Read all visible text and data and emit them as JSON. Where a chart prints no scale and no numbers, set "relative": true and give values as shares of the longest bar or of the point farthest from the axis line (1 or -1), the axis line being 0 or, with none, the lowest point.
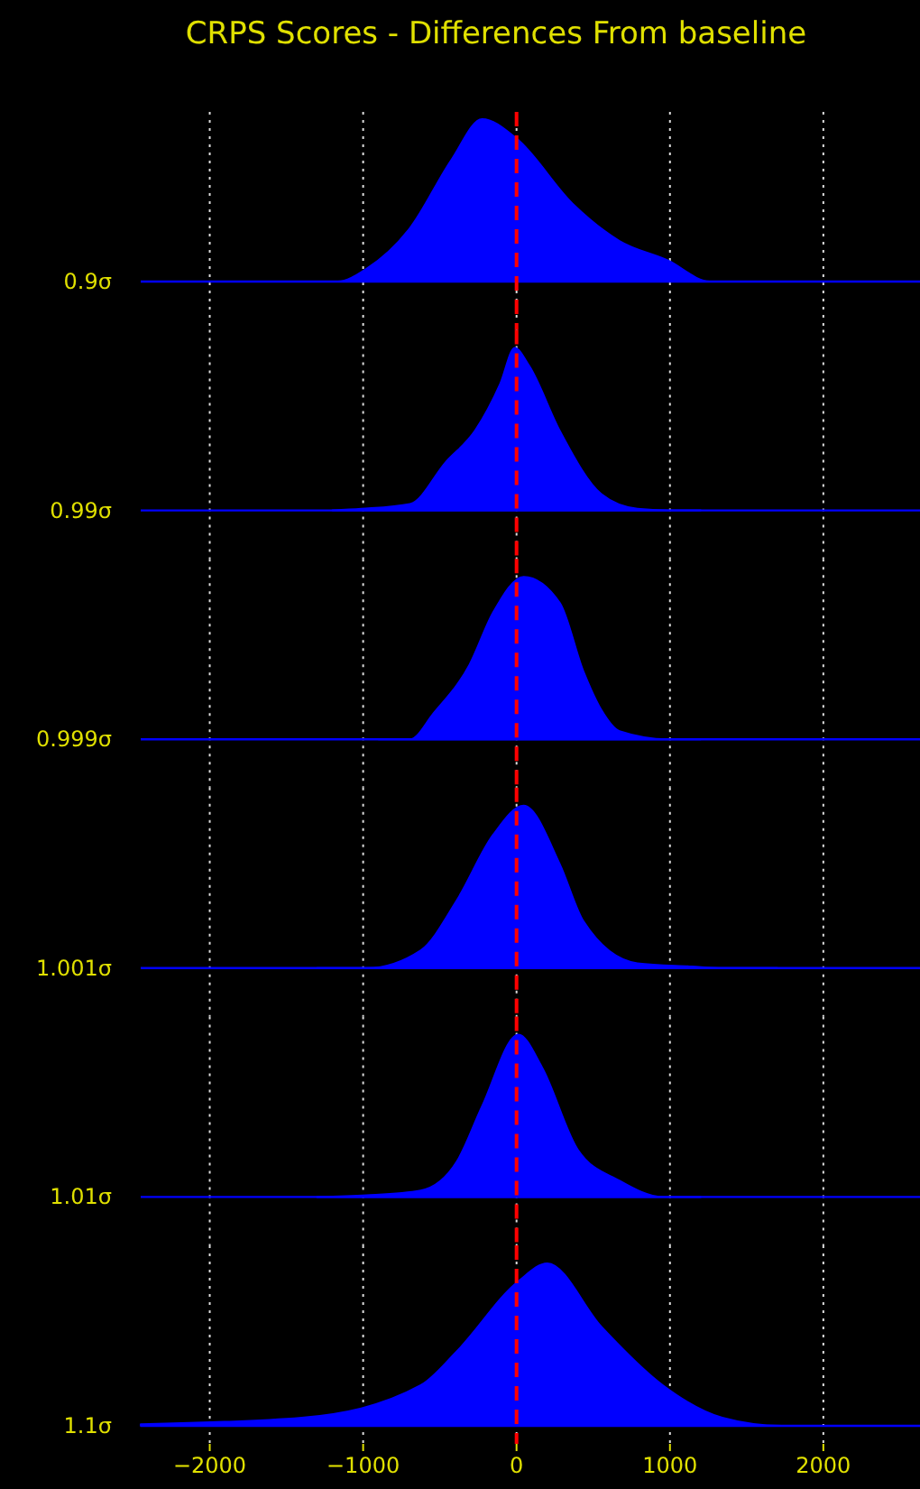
{
  "chart_data": [
    {
      "type": "area",
      "title": "CRPS Scores - Differences From baseline",
      "relative": true,
      "ylabel": "0.9σ",
      "series": [
        {
          "color": "#0000ff",
          "x": [
            -1400,
            -1165,
            -976,
            -694,
            -424,
            -224,
            0,
            365,
            671,
            988,
            1259,
            1600
          ],
          "values": [
            0,
            0,
            0.08,
            0.33,
            0.75,
            1,
            0.88,
            0.48,
            0.25,
            0.13,
            0,
            0
          ]
        }
      ],
      "xlim": [
        -2450,
        2630
      ],
      "xticks": [
        -2000,
        -1000,
        0,
        1000,
        2000
      ],
      "grid": "x",
      "ref_lines": [
        {
          "axis": "x",
          "value": 0,
          "color": "#ff0000",
          "line_style": "dashed"
        }
      ],
      "tick_labels": false
    },
    {
      "type": "area",
      "relative": true,
      "ylabel": "0.99σ",
      "series": [
        {
          "color": "#0000ff",
          "x": [
            -1200,
            -1012,
            -694,
            -459,
            -271,
            -106,
            -12,
            82,
            282,
            553,
            788,
            988,
            1200
          ],
          "values": [
            0,
            0.01,
            0.04,
            0.3,
            0.49,
            0.78,
            1,
            0.89,
            0.49,
            0.1,
            0.01,
            0,
            0
          ]
        }
      ],
      "xlim": [
        -2450,
        2630
      ],
      "xticks": [
        -2000,
        -1000,
        0,
        1000,
        2000
      ],
      "grid": "x",
      "ref_lines": [
        {
          "axis": "x",
          "value": 0,
          "color": "#ff0000",
          "line_style": "dashed"
        }
      ],
      "tick_labels": false
    },
    {
      "type": "area",
      "relative": true,
      "ylabel": "0.999σ",
      "series": [
        {
          "color": "#0000ff",
          "x": [
            -900,
            -694,
            -541,
            -306,
            -153,
            47,
            282,
            435,
            553,
            671,
            988,
            1200
          ],
          "values": [
            0,
            0,
            0.16,
            0.46,
            0.78,
            1,
            0.84,
            0.42,
            0.18,
            0.05,
            0,
            0
          ]
        }
      ],
      "xlim": [
        -2450,
        2630
      ],
      "xticks": [
        -2000,
        -1000,
        0,
        1000,
        2000
      ],
      "grid": "x",
      "ref_lines": [
        {
          "axis": "x",
          "value": 0,
          "color": "#ff0000",
          "line_style": "dashed"
        }
      ],
      "tick_labels": false
    },
    {
      "type": "area",
      "relative": true,
      "ylabel": "1.001σ",
      "series": [
        {
          "color": "#0000ff",
          "x": [
            -1300,
            -976,
            -624,
            -388,
            -153,
            47,
            282,
            435,
            788,
            1141,
            1341,
            1700
          ],
          "values": [
            0,
            0,
            0.11,
            0.42,
            0.82,
            1,
            0.64,
            0.29,
            0.03,
            0.01,
            0,
            0
          ]
        }
      ],
      "xlim": [
        -2450,
        2630
      ],
      "xticks": [
        -2000,
        -1000,
        0,
        1000,
        2000
      ],
      "grid": "x",
      "ref_lines": [
        {
          "axis": "x",
          "value": 0,
          "color": "#ff0000",
          "line_style": "dashed"
        }
      ],
      "tick_labels": false
    },
    {
      "type": "area",
      "relative": true,
      "ylabel": "1.01σ",
      "series": [
        {
          "color": "#0000ff",
          "x": [
            -1300,
            -976,
            -624,
            -388,
            -224,
            12,
            165,
            400,
            671,
            953,
            1200
          ],
          "values": [
            0,
            0.01,
            0.04,
            0.22,
            0.56,
            1,
            0.8,
            0.29,
            0.1,
            0,
            0
          ]
        }
      ],
      "xlim": [
        -2450,
        2630
      ],
      "xticks": [
        -2000,
        -1000,
        0,
        1000,
        2000
      ],
      "grid": "x",
      "ref_lines": [
        {
          "axis": "x",
          "value": 0,
          "color": "#ff0000",
          "line_style": "dashed"
        }
      ],
      "tick_labels": false
    },
    {
      "type": "area",
      "relative": true,
      "ylabel": "1.1σ",
      "series": [
        {
          "color": "#0000ff",
          "x": [
            -2450,
            -1400,
            -624,
            -388,
            12,
            200,
            553,
            953,
            1341,
            1729,
            2630
          ],
          "values": [
            0.01,
            0.05,
            0.25,
            0.46,
            0.89,
            1,
            0.61,
            0.25,
            0.05,
            0,
            0
          ]
        }
      ],
      "xlim": [
        -2450,
        2630
      ],
      "xticks": [
        {
          "value": -2000,
          "label": "−2000"
        },
        {
          "value": -1000,
          "label": "−1000"
        },
        0,
        1000,
        2000
      ],
      "grid": "x",
      "ref_lines": [
        {
          "axis": "x",
          "value": 0,
          "color": "#ff0000",
          "line_style": "dashed"
        }
      ],
      "tick_labels": "x"
    }
  ]
}
